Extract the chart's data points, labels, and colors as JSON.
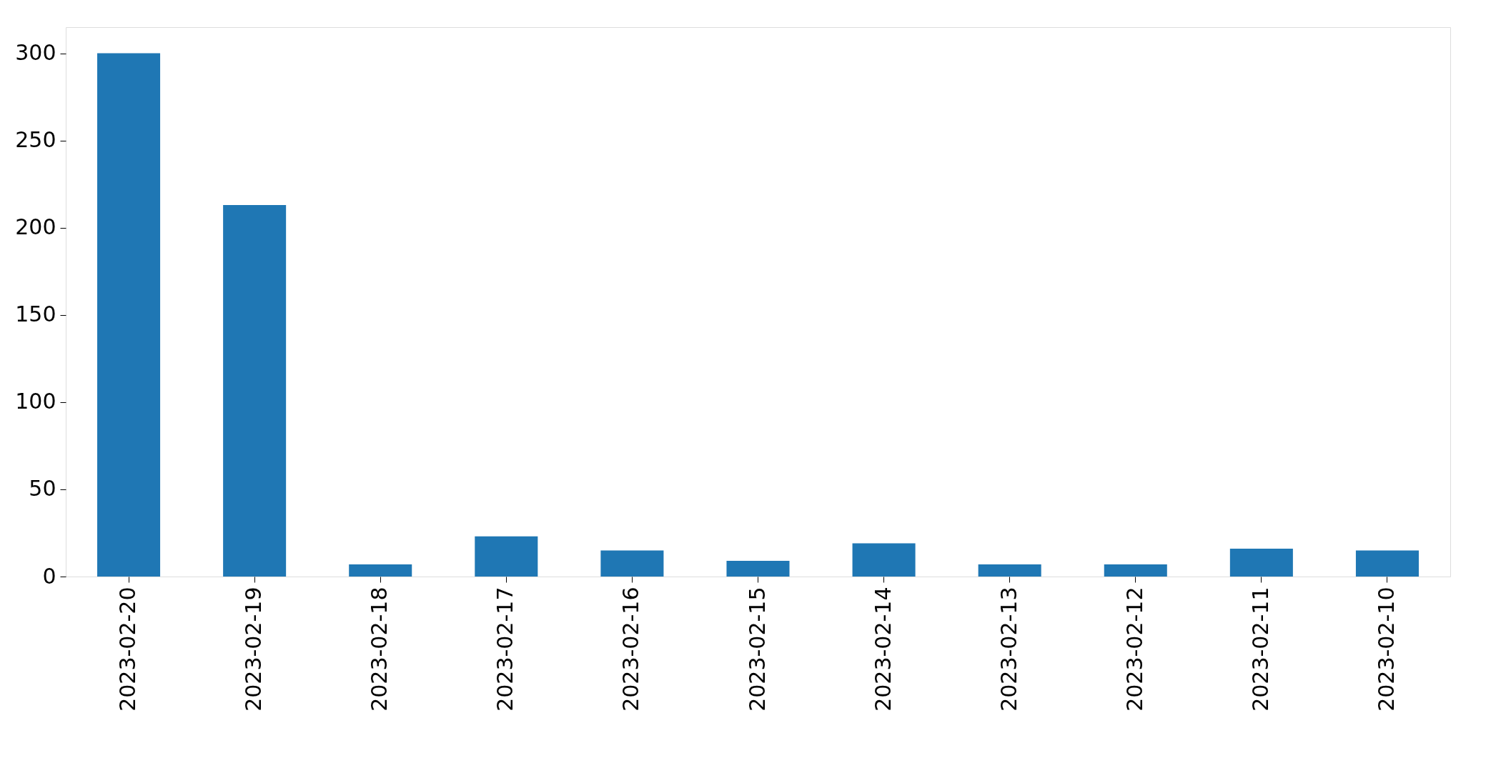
{
  "chart_data": {
    "type": "bar",
    "categories": [
      "2023-02-20",
      "2023-02-19",
      "2023-02-18",
      "2023-02-17",
      "2023-02-16",
      "2023-02-15",
      "2023-02-14",
      "2023-02-13",
      "2023-02-12",
      "2023-02-11",
      "2023-02-10"
    ],
    "values": [
      300,
      213,
      7,
      23,
      15,
      9,
      19,
      7,
      7,
      16,
      15
    ],
    "color": "#1f77b4",
    "ylim": [
      0,
      315
    ],
    "yticks": [
      0,
      50,
      100,
      150,
      200,
      250,
      300
    ],
    "grid": false
  }
}
